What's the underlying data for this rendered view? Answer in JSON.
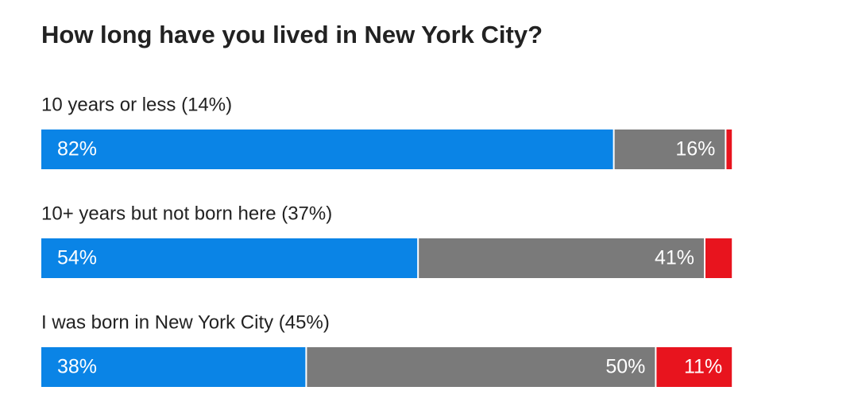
{
  "chart_data": {
    "type": "stacked-bar-horizontal",
    "title": "How long have you lived in New York City?",
    "categories": [
      "10 years or less (14%)",
      "10+ years but not born here (37%)",
      "I was born in New York City (45%)"
    ],
    "series": [
      {
        "color": "#0a84e6",
        "values": [
          82,
          54,
          38
        ],
        "value_labels": [
          "82%",
          "54%",
          "38%"
        ]
      },
      {
        "color": "#7a7a7a",
        "values": [
          16,
          41,
          50
        ],
        "value_labels": [
          "16%",
          "41%",
          "50%"
        ]
      },
      {
        "color": "#e8141e",
        "values": [
          1,
          4,
          11
        ],
        "value_labels": [
          null,
          null,
          "11%"
        ]
      }
    ],
    "xlim": [
      0,
      100
    ]
  }
}
